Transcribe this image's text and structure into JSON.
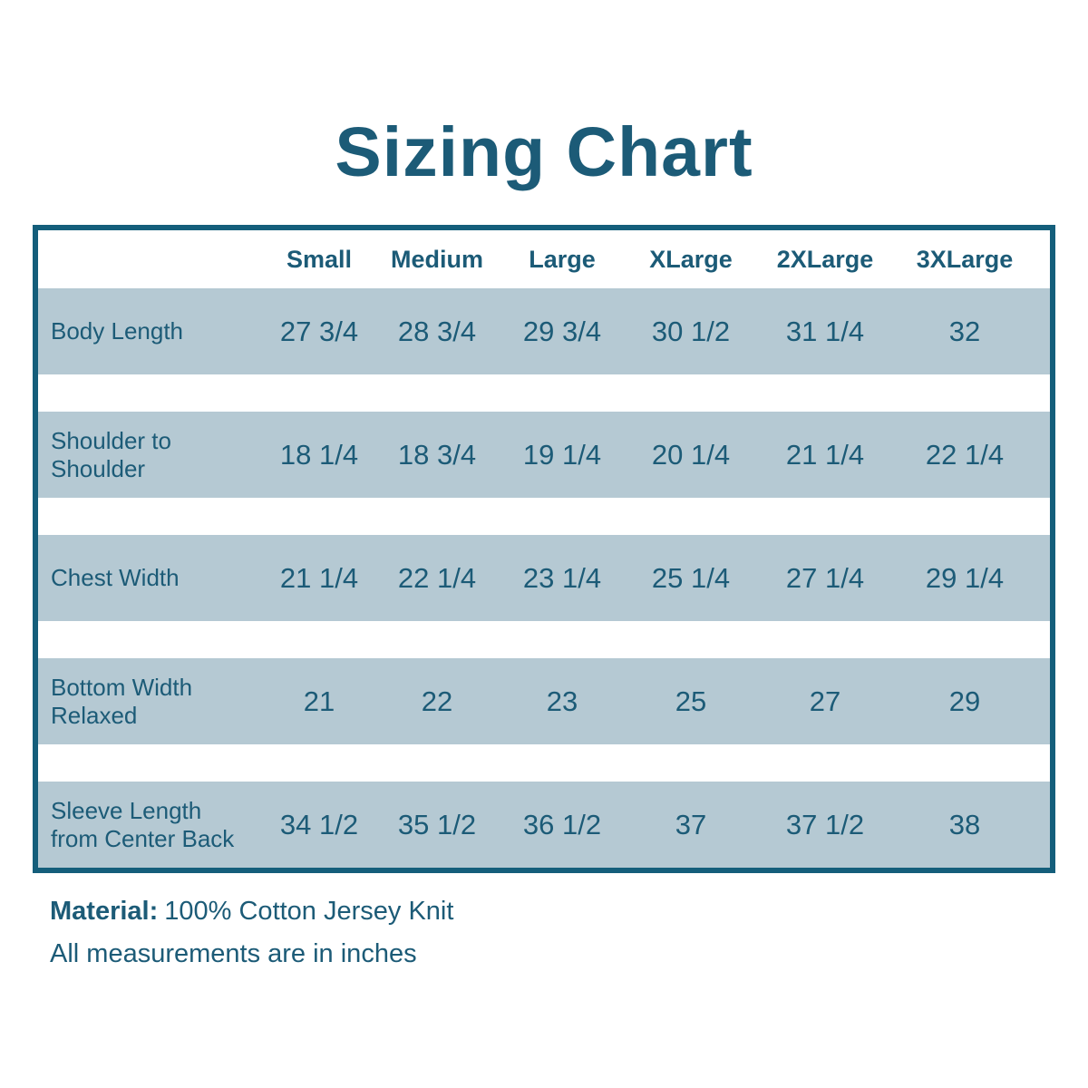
{
  "footer": {
    "material_label": "Material:",
    "material_value": "100% Cotton Jersey Knit",
    "note": "All measurements are in inches"
  },
  "colors": {
    "text_teal": "#1c5b77",
    "border_teal": "#145e7b",
    "row_background": "#b5c9d3",
    "page_background": "#ffffff"
  },
  "chart_data": {
    "type": "table",
    "title": "Sizing Chart",
    "columns": [
      "Small",
      "Medium",
      "Large",
      "XLarge",
      "2XLarge",
      "3XLarge"
    ],
    "rows": [
      {
        "label": "Body Length",
        "values": [
          "27 3/4",
          "28 3/4",
          "29 3/4",
          "30 1/2",
          "31 1/4",
          "32"
        ]
      },
      {
        "label": "Shoulder to\nShoulder",
        "values": [
          "18 1/4",
          "18 3/4",
          "19 1/4",
          "20 1/4",
          "21 1/4",
          "22 1/4"
        ]
      },
      {
        "label": "Chest Width",
        "values": [
          "21 1/4",
          "22 1/4",
          "23 1/4",
          "25 1/4",
          "27 1/4",
          "29 1/4"
        ]
      },
      {
        "label": "Bottom Width\nRelaxed",
        "values": [
          "21",
          "22",
          "23",
          "25",
          "27",
          "29"
        ]
      },
      {
        "label": "Sleeve Length\nfrom Center Back",
        "values": [
          "34 1/2",
          "35 1/2",
          "36 1/2",
          "37",
          "37 1/2",
          "38"
        ]
      }
    ],
    "units": "inches",
    "material": "100% Cotton Jersey Knit",
    "layout": {
      "grid": "off",
      "row_shading": "alternating bands with white gaps"
    }
  }
}
